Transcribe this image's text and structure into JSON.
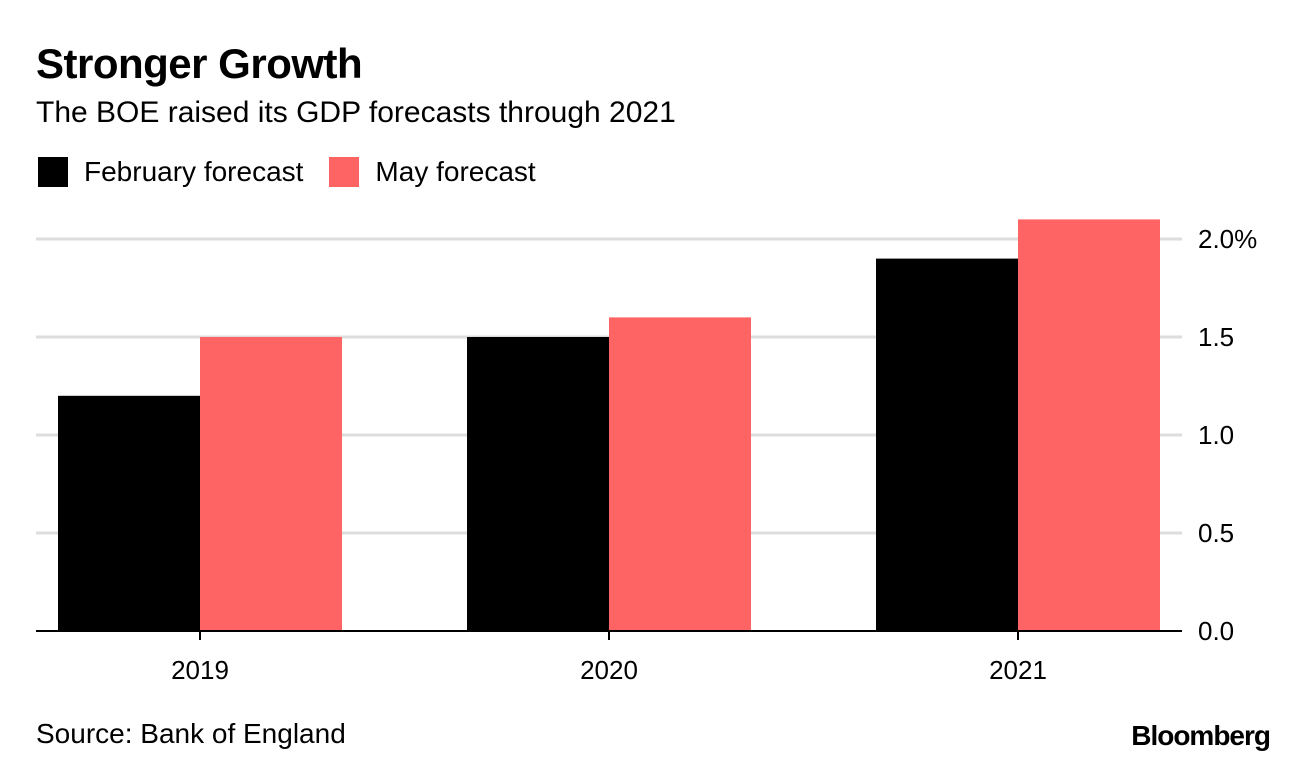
{
  "colors": {
    "february": "#000000",
    "may": "#ff6464",
    "grid": "#dddddd",
    "axis": "#000000"
  },
  "logo": "Bloomberg",
  "chart_data": {
    "type": "bar",
    "title": "Stronger Growth",
    "subtitle": "The BOE raised its GDP forecasts through 2021",
    "categories": [
      "2019",
      "2020",
      "2021"
    ],
    "series": [
      {
        "name": "February forecast",
        "values": [
          1.2,
          1.5,
          1.9
        ]
      },
      {
        "name": "May forecast",
        "values": [
          1.5,
          1.6,
          2.1
        ]
      }
    ],
    "ylim": [
      0,
      2.0
    ],
    "yticks": [
      0.0,
      0.5,
      1.0,
      1.5,
      2.0
    ],
    "ytick_labels": [
      "0.0",
      "0.5",
      "1.0",
      "1.5",
      "2.0%"
    ],
    "xlabel": "",
    "ylabel": "",
    "grid": true,
    "legend_position": "top-left",
    "source": "Source: Bank of England"
  }
}
